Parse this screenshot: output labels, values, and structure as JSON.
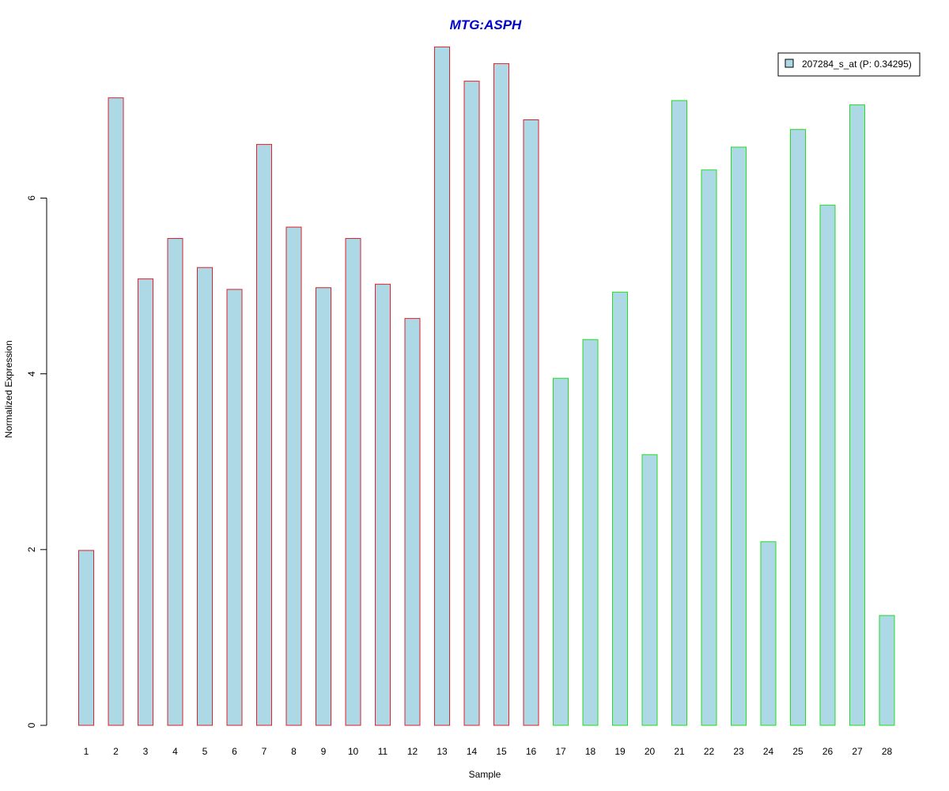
{
  "chart_data": {
    "type": "bar",
    "title": "MTG:ASPH",
    "xlabel": "Sample",
    "ylabel": "Normalized Expression",
    "categories": [
      "1",
      "2",
      "3",
      "4",
      "5",
      "6",
      "7",
      "8",
      "9",
      "10",
      "11",
      "12",
      "13",
      "14",
      "15",
      "16",
      "17",
      "18",
      "19",
      "20",
      "21",
      "22",
      "23",
      "24",
      "25",
      "26",
      "27",
      "28"
    ],
    "values": [
      1.99,
      7.14,
      5.08,
      5.54,
      5.21,
      4.96,
      6.61,
      5.67,
      4.98,
      5.54,
      5.02,
      4.63,
      7.72,
      7.33,
      7.53,
      6.89,
      3.95,
      4.39,
      4.93,
      3.08,
      7.11,
      6.32,
      6.58,
      2.09,
      6.78,
      5.92,
      7.06,
      1.25
    ],
    "group_edge_colors": [
      "#e0202a",
      "#e0202a",
      "#e0202a",
      "#e0202a",
      "#e0202a",
      "#e0202a",
      "#e0202a",
      "#e0202a",
      "#e0202a",
      "#e0202a",
      "#e0202a",
      "#e0202a",
      "#e0202a",
      "#e0202a",
      "#e0202a",
      "#e0202a",
      "#22dd22",
      "#22dd22",
      "#22dd22",
      "#22dd22",
      "#22dd22",
      "#22dd22",
      "#22dd22",
      "#22dd22",
      "#22dd22",
      "#22dd22",
      "#22dd22",
      "#22dd22"
    ],
    "bar_fill": "#add8e6",
    "title_color": "#0000cc",
    "yticks": [
      0,
      2,
      4,
      6
    ],
    "ylim": [
      0,
      7.72
    ],
    "grid": false,
    "legend": {
      "placement": "top-right",
      "entries": [
        {
          "name": "207284_s_at (P: 0.34295)",
          "color": "#add8e6"
        }
      ]
    }
  }
}
